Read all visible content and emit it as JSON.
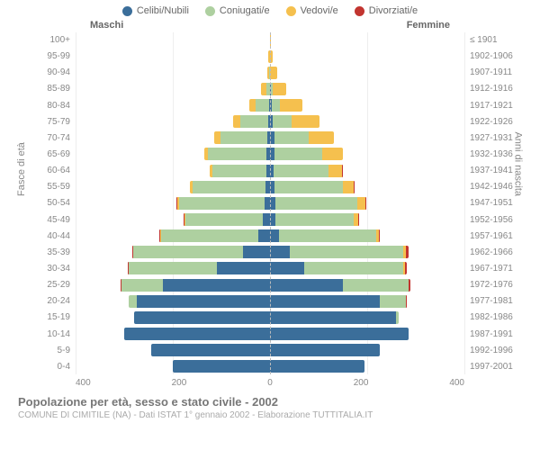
{
  "legend": [
    {
      "label": "Celibi/Nubili",
      "color": "#3b6e9a"
    },
    {
      "label": "Coniugati/e",
      "color": "#aed0a0"
    },
    {
      "label": "Vedovi/e",
      "color": "#f5c04e"
    },
    {
      "label": "Divorziati/e",
      "color": "#c23530"
    }
  ],
  "side_labels": {
    "left": "Maschi",
    "right": "Femmine"
  },
  "axis_titles": {
    "left": "Fasce di età",
    "right": "Anni di nascita"
  },
  "x_axis": {
    "ticks": [
      "400",
      "200",
      "0",
      "200",
      "400"
    ],
    "max": 400
  },
  "colors": {
    "grid": "#eeeeee",
    "center": "#bbbbbb",
    "bg": "#ffffff"
  },
  "footer": {
    "title": "Popolazione per età, sesso e stato civile - 2002",
    "subtitle": "COMUNE DI CIMITILE (NA) - Dati ISTAT 1° gennaio 2002 - Elaborazione TUTTITALIA.IT"
  },
  "rows": [
    {
      "age": "100+",
      "birth": "≤ 1901",
      "m": {
        "c": 0,
        "co": 0,
        "v": 0,
        "d": 0
      },
      "f": {
        "c": 0,
        "co": 0,
        "v": 2,
        "d": 0
      }
    },
    {
      "age": "95-99",
      "birth": "1902-1906",
      "m": {
        "c": 0,
        "co": 0,
        "v": 3,
        "d": 0
      },
      "f": {
        "c": 0,
        "co": 0,
        "v": 6,
        "d": 0
      }
    },
    {
      "age": "90-94",
      "birth": "1907-1911",
      "m": {
        "c": 0,
        "co": 2,
        "v": 4,
        "d": 0
      },
      "f": {
        "c": 0,
        "co": 0,
        "v": 14,
        "d": 0
      }
    },
    {
      "age": "85-89",
      "birth": "1912-1916",
      "m": {
        "c": 0,
        "co": 8,
        "v": 10,
        "d": 0
      },
      "f": {
        "c": 2,
        "co": 4,
        "v": 28,
        "d": 0
      }
    },
    {
      "age": "80-84",
      "birth": "1917-1921",
      "m": {
        "c": 2,
        "co": 28,
        "v": 12,
        "d": 0
      },
      "f": {
        "c": 4,
        "co": 16,
        "v": 46,
        "d": 0
      }
    },
    {
      "age": "75-79",
      "birth": "1922-1926",
      "m": {
        "c": 4,
        "co": 58,
        "v": 14,
        "d": 0
      },
      "f": {
        "c": 6,
        "co": 38,
        "v": 58,
        "d": 0
      }
    },
    {
      "age": "70-74",
      "birth": "1927-1931",
      "m": {
        "c": 6,
        "co": 96,
        "v": 12,
        "d": 0
      },
      "f": {
        "c": 10,
        "co": 70,
        "v": 52,
        "d": 0
      }
    },
    {
      "age": "65-69",
      "birth": "1932-1936",
      "m": {
        "c": 8,
        "co": 120,
        "v": 8,
        "d": 0
      },
      "f": {
        "c": 10,
        "co": 98,
        "v": 42,
        "d": 0
      }
    },
    {
      "age": "60-64",
      "birth": "1937-1941",
      "m": {
        "c": 8,
        "co": 110,
        "v": 6,
        "d": 0
      },
      "f": {
        "c": 8,
        "co": 112,
        "v": 28,
        "d": 2
      }
    },
    {
      "age": "55-59",
      "birth": "1942-1946",
      "m": {
        "c": 10,
        "co": 150,
        "v": 4,
        "d": 0
      },
      "f": {
        "c": 10,
        "co": 140,
        "v": 22,
        "d": 2
      }
    },
    {
      "age": "50-54",
      "birth": "1947-1951",
      "m": {
        "c": 12,
        "co": 176,
        "v": 2,
        "d": 2
      },
      "f": {
        "c": 12,
        "co": 168,
        "v": 16,
        "d": 2
      }
    },
    {
      "age": "45-49",
      "birth": "1952-1956",
      "m": {
        "c": 14,
        "co": 160,
        "v": 2,
        "d": 2
      },
      "f": {
        "c": 12,
        "co": 160,
        "v": 10,
        "d": 2
      }
    },
    {
      "age": "40-44",
      "birth": "1957-1961",
      "m": {
        "c": 24,
        "co": 200,
        "v": 2,
        "d": 2
      },
      "f": {
        "c": 18,
        "co": 200,
        "v": 6,
        "d": 2
      }
    },
    {
      "age": "35-39",
      "birth": "1962-1966",
      "m": {
        "c": 56,
        "co": 225,
        "v": 0,
        "d": 2
      },
      "f": {
        "c": 40,
        "co": 235,
        "v": 4,
        "d": 6
      }
    },
    {
      "age": "30-34",
      "birth": "1967-1971",
      "m": {
        "c": 110,
        "co": 180,
        "v": 0,
        "d": 2
      },
      "f": {
        "c": 70,
        "co": 205,
        "v": 2,
        "d": 4
      }
    },
    {
      "age": "25-29",
      "birth": "1972-1976",
      "m": {
        "c": 220,
        "co": 85,
        "v": 0,
        "d": 2
      },
      "f": {
        "c": 150,
        "co": 135,
        "v": 0,
        "d": 4
      }
    },
    {
      "age": "20-24",
      "birth": "1977-1981",
      "m": {
        "c": 275,
        "co": 15,
        "v": 0,
        "d": 0
      },
      "f": {
        "c": 225,
        "co": 55,
        "v": 0,
        "d": 2
      }
    },
    {
      "age": "15-19",
      "birth": "1982-1986",
      "m": {
        "c": 280,
        "co": 0,
        "v": 0,
        "d": 0
      },
      "f": {
        "c": 260,
        "co": 5,
        "v": 0,
        "d": 0
      }
    },
    {
      "age": "10-14",
      "birth": "1987-1991",
      "m": {
        "c": 300,
        "co": 0,
        "v": 0,
        "d": 0
      },
      "f": {
        "c": 285,
        "co": 0,
        "v": 0,
        "d": 0
      }
    },
    {
      "age": "5-9",
      "birth": "1992-1996",
      "m": {
        "c": 245,
        "co": 0,
        "v": 0,
        "d": 0
      },
      "f": {
        "c": 225,
        "co": 0,
        "v": 0,
        "d": 0
      }
    },
    {
      "age": "0-4",
      "birth": "1997-2001",
      "m": {
        "c": 200,
        "co": 0,
        "v": 0,
        "d": 0
      },
      "f": {
        "c": 195,
        "co": 0,
        "v": 0,
        "d": 0
      }
    }
  ]
}
